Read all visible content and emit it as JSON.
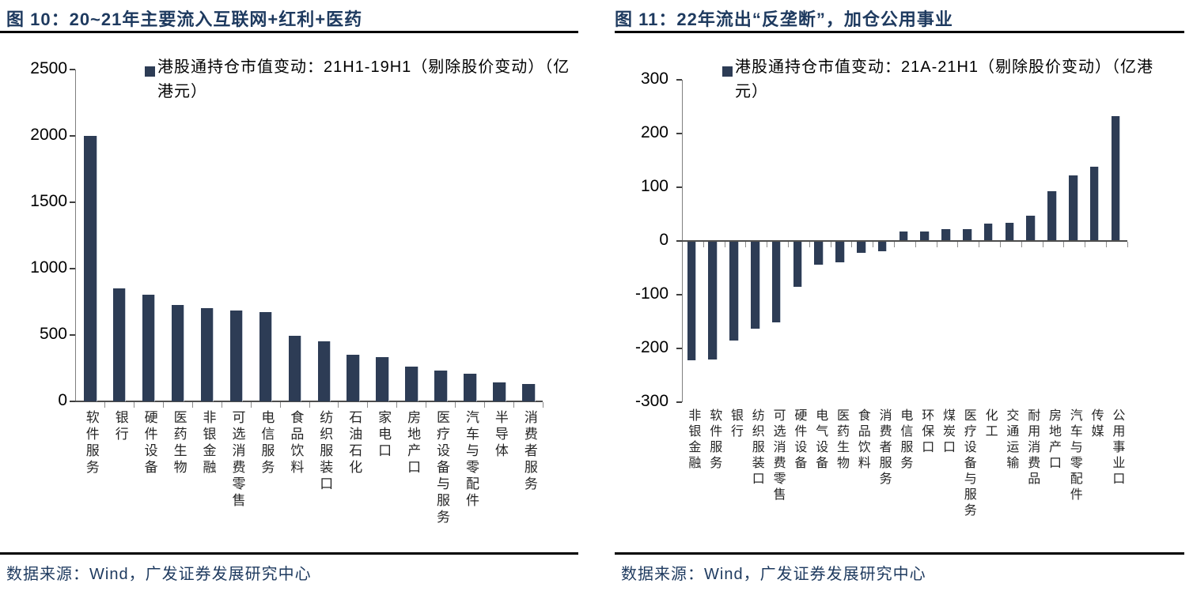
{
  "report": {
    "source_text": "数据来源：Wind，广发证券发展研究中心"
  },
  "colors": {
    "bar": "#2d3c55",
    "title": "#1e3a5f",
    "axis": "#808080",
    "rule": "#000000"
  },
  "chart_data": [
    {
      "type": "bar",
      "title": "图 10：20~21年主要流入互联网+红利+医药",
      "legend": "港股通持仓市值变动：21H1-19H1（剔除股价变动）（亿港元）",
      "unit": "亿港元",
      "legend_position": "top",
      "grid": false,
      "ylim": [
        0,
        2500
      ],
      "yticks": [
        0,
        500,
        1000,
        1500,
        2000,
        2500
      ],
      "categories": [
        "软件服务",
        "银行",
        "硬件设备",
        "医药生物",
        "非银金融",
        "可选消费零售",
        "电信服务",
        "食品饮料",
        "纺织服装口",
        "石油石化",
        "家电口",
        "房地产口",
        "医疗设备与服务",
        "汽车与零配件",
        "半导体",
        "消费者服务"
      ],
      "values": [
        2000,
        850,
        805,
        725,
        700,
        685,
        670,
        495,
        455,
        350,
        335,
        260,
        235,
        210,
        145,
        130
      ],
      "source": "数据来源：Wind，广发证券发展研究中心"
    },
    {
      "type": "bar",
      "title": "图 11：22年流出“反垄断”，加仓公用事业",
      "legend": "港股通持仓市值变动：21A-21H1（剔除股价变动）（亿港元）",
      "unit": "亿港元",
      "legend_position": "top",
      "grid": false,
      "ylim": [
        -300,
        300
      ],
      "yticks": [
        300,
        200,
        100,
        0,
        -100,
        -200,
        -300
      ],
      "categories": [
        "非银金融",
        "软件服务",
        "银行",
        "纺织服装口",
        "可选消费零售",
        "硬件设备",
        "电气设备",
        "医药生物",
        "食品饮料",
        "消费者服务",
        "电信服务",
        "环保口",
        "煤炭口",
        "医疗设备与服务",
        "化工",
        "交通运输",
        "耐用消费品",
        "房地产口",
        "汽车与零配件",
        "传媒",
        "公用事业口"
      ],
      "values": [
        -222,
        -220,
        -184,
        -163,
        -151,
        -85,
        -44,
        -39,
        -22,
        -18,
        17,
        17,
        22,
        22,
        31,
        33,
        47,
        92,
        122,
        137,
        232
      ],
      "source": "数据来源：Wind，广发证券发展研究中心"
    }
  ]
}
